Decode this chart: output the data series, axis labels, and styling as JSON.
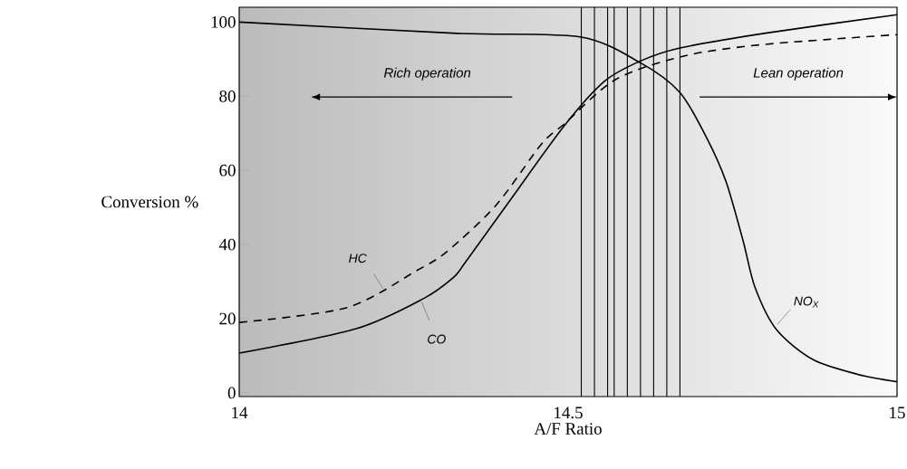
{
  "chart_data": {
    "type": "line",
    "xlabel": "A/F Ratio",
    "ylabel": "Conversion %",
    "annotations": [
      "Rich operation",
      "Lean operation"
    ],
    "series": [
      {
        "name": "HC",
        "color": "#000000",
        "line_style": "dashed",
        "x": [
          14.0,
          14.164,
          14.27,
          14.315,
          14.39,
          14.459,
          14.494,
          14.573,
          14.68,
          14.8,
          15.0
        ],
        "values": [
          19,
          23,
          33,
          38,
          50.5,
          67,
          72.5,
          84.6,
          91,
          94,
          96.6
        ]
      },
      {
        "name": "CO",
        "color": "#000000",
        "line_style": "solid",
        "x": [
          14.0,
          14.178,
          14.28,
          14.325,
          14.343,
          14.412,
          14.494,
          14.555,
          14.61,
          14.67,
          14.8,
          15.0
        ],
        "values": [
          10.7,
          17.3,
          25.4,
          31,
          35,
          52,
          72,
          84,
          89.5,
          93,
          97,
          102
        ]
      },
      {
        "name": "NO$_{X}$",
        "color": "#000000",
        "line_style": "solid",
        "x": [
          14.0,
          14.325,
          14.518,
          14.61,
          14.67,
          14.71,
          14.74,
          14.766,
          14.784,
          14.817,
          14.872,
          14.94,
          15.0
        ],
        "values": [
          100,
          97,
          96,
          89,
          81,
          69,
          57,
          41,
          28.5,
          17,
          9,
          5,
          3
        ]
      }
    ],
    "ref_lines": [
      {
        "axis": "x",
        "value": 14.52
      },
      {
        "axis": "x",
        "value": 14.54
      },
      {
        "axis": "x",
        "value": 14.56
      },
      {
        "axis": "x",
        "value": 14.57
      },
      {
        "axis": "x",
        "value": 14.59
      },
      {
        "axis": "x",
        "value": 14.61
      },
      {
        "axis": "x",
        "value": 14.63
      },
      {
        "axis": "x",
        "value": 14.65
      },
      {
        "axis": "x",
        "value": 14.67
      }
    ],
    "xlim": [
      14,
      15
    ],
    "ylim": [
      -1,
      104
    ],
    "xticks": [
      14,
      14.5,
      15
    ],
    "yticks": [
      0,
      20,
      40,
      60,
      80,
      100
    ],
    "grid": false,
    "legend": false,
    "marker": "none"
  }
}
